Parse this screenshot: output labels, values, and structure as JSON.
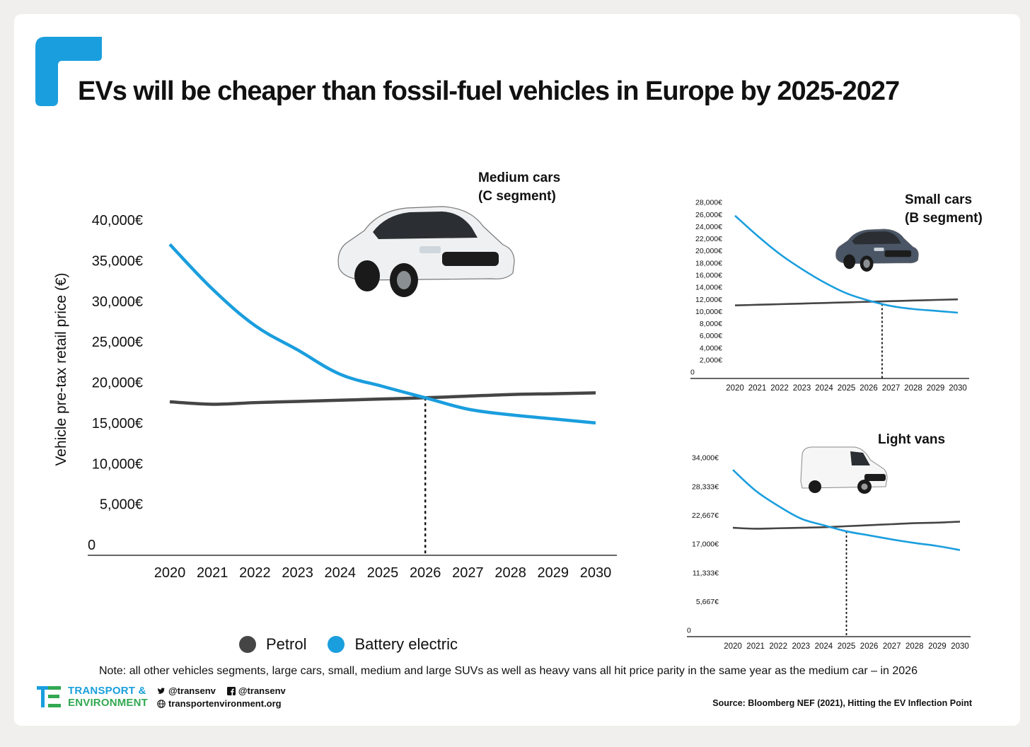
{
  "title": "EVs will be cheaper than fossil-fuel vehicles in Europe by 2025-2027",
  "colors": {
    "petrol": "#454545",
    "battery_electric": "#1a9ede",
    "accent": "#1a9ede"
  },
  "legend": {
    "petrol": "Petrol",
    "battery_electric": "Battery electric"
  },
  "note": "Note: all other vehicles segments, large cars, small, medium and large SUVs as well as heavy vans all hit price parity in the same year as the medium car – in 2026",
  "source": "Source: Bloomberg NEF (2021), Hitting the EV Inflection Point",
  "brand": {
    "line1": "TRANSPORT &",
    "line2": "ENVIRONMENT"
  },
  "social": {
    "twitter": "@transenv",
    "facebook": "@transenv",
    "web": "transportenvironment.org"
  },
  "chart_data": [
    {
      "id": "medium",
      "type": "line",
      "title_lines": [
        "Medium cars",
        "(C segment)"
      ],
      "ylabel": "Vehicle pre-tax retail price (€)",
      "x": [
        2020,
        2021,
        2022,
        2023,
        2024,
        2025,
        2026,
        2027,
        2028,
        2029,
        2030
      ],
      "ylim": [
        0,
        40000
      ],
      "yticks": [
        "0",
        "5,000€",
        "10,000€",
        "15,000€",
        "20,000€",
        "25,000€",
        "30,000€",
        "35,000€",
        "40,000€"
      ],
      "series": [
        {
          "name": "Petrol",
          "values": [
            17600,
            17300,
            17500,
            17650,
            17800,
            17950,
            18100,
            18300,
            18500,
            18600,
            18700
          ]
        },
        {
          "name": "Battery electric",
          "values": [
            37000,
            31500,
            27000,
            24000,
            21000,
            19500,
            18100,
            16700,
            16000,
            15500,
            15000
          ]
        }
      ],
      "parity_year": 2026
    },
    {
      "id": "small",
      "type": "line",
      "title_lines": [
        "Small cars",
        "(B segment)"
      ],
      "x": [
        2020,
        2021,
        2022,
        2023,
        2024,
        2025,
        2026,
        2027,
        2028,
        2029,
        2030
      ],
      "ylim": [
        0,
        28000
      ],
      "yticks": [
        "0",
        "2,000€",
        "4,000€",
        "6,000€",
        "8,000€",
        "10,000€",
        "12,000€",
        "14,000€",
        "16,000€",
        "18,000€",
        "20,000€",
        "22,000€",
        "24,000€",
        "26,000€",
        "28,000€"
      ],
      "series": [
        {
          "name": "Petrol",
          "values": [
            11000,
            11100,
            11200,
            11300,
            11400,
            11500,
            11600,
            11700,
            11800,
            11900,
            12000
          ]
        },
        {
          "name": "Battery electric",
          "values": [
            25800,
            22500,
            19500,
            17000,
            14800,
            13000,
            11800,
            10900,
            10400,
            10100,
            9800
          ]
        }
      ],
      "parity_year": 2026.6
    },
    {
      "id": "vans",
      "type": "line",
      "title_lines": [
        "Light vans"
      ],
      "x": [
        2020,
        2021,
        2022,
        2023,
        2024,
        2025,
        2026,
        2027,
        2028,
        2029,
        2030
      ],
      "ylim": [
        0,
        34000
      ],
      "yticks": [
        "0",
        "5,667€",
        "11,333€",
        "17,000€",
        "22,667€",
        "28,333€",
        "34,000€"
      ],
      "series": [
        {
          "name": "Petrol",
          "values": [
            20200,
            20000,
            20100,
            20200,
            20300,
            20500,
            20700,
            20900,
            21100,
            21200,
            21400
          ]
        },
        {
          "name": "Battery electric",
          "values": [
            31600,
            27500,
            24500,
            22000,
            20700,
            19500,
            18700,
            17900,
            17200,
            16600,
            15800
          ]
        }
      ],
      "parity_year": 2025
    }
  ]
}
